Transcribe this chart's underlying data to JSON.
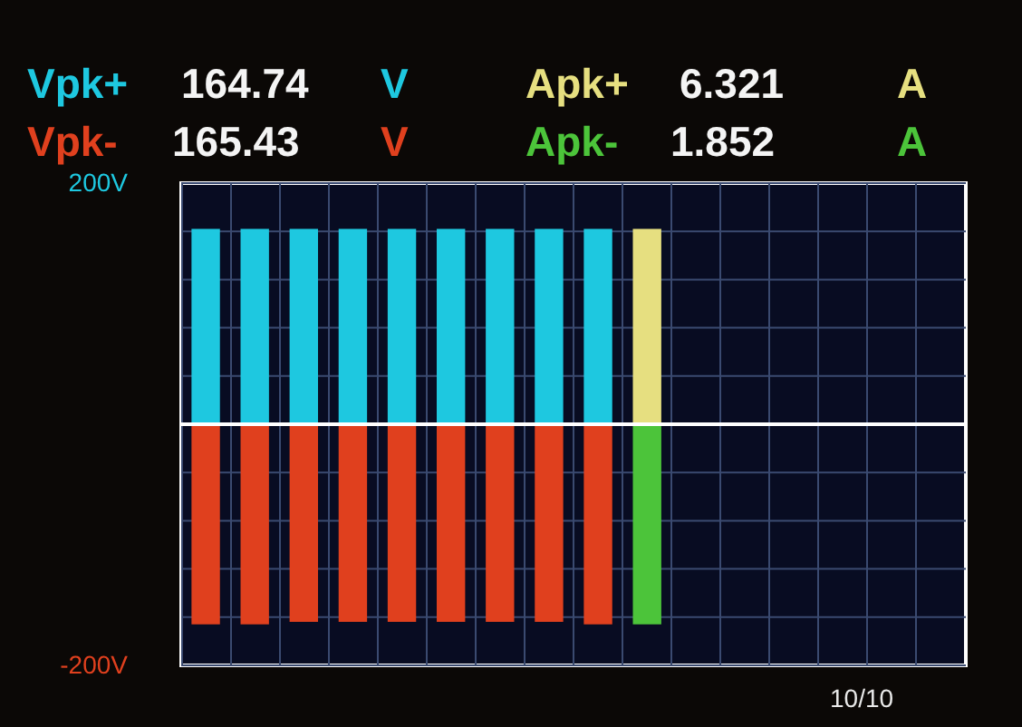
{
  "chart_data": {
    "type": "bar",
    "categories": [
      null,
      null,
      null,
      null,
      null,
      null,
      null,
      null,
      null,
      null,
      null,
      null,
      null,
      null,
      null,
      null
    ],
    "series": [
      {
        "name": "Vpk+",
        "color": "#1ec8e0",
        "values": [
          162,
          162,
          162,
          162,
          162,
          162,
          162,
          162,
          162,
          null,
          null,
          null,
          null,
          null,
          null,
          null
        ]
      },
      {
        "name": "Vpk-",
        "color": "#e0401e",
        "values": [
          -166,
          -166,
          -164,
          -164,
          -164,
          -164,
          -164,
          -164,
          -166,
          null,
          null,
          null,
          null,
          null,
          null,
          null
        ]
      },
      {
        "name": "Apk+",
        "color": "#e6df80",
        "values": [
          null,
          null,
          null,
          null,
          null,
          null,
          null,
          null,
          null,
          162,
          null,
          null,
          null,
          null,
          null,
          null
        ]
      },
      {
        "name": "Apk-",
        "color": "#4cc43a",
        "values": [
          null,
          null,
          null,
          null,
          null,
          null,
          null,
          null,
          null,
          -166,
          null,
          null,
          null,
          null,
          null,
          null
        ]
      }
    ],
    "ylim": [
      -200,
      200
    ],
    "yticks": [
      {
        "value": -200,
        "label": "-200V"
      },
      {
        "value": -160,
        "label": null
      },
      {
        "value": -120,
        "label": null
      },
      {
        "value": -80,
        "label": null
      },
      {
        "value": -40,
        "label": null
      },
      {
        "value": 0,
        "label": null
      },
      {
        "value": 40,
        "label": null
      },
      {
        "value": 80,
        "label": null
      },
      {
        "value": 120,
        "label": null
      },
      {
        "value": 160,
        "label": null
      },
      {
        "value": 200,
        "label": "200V"
      }
    ],
    "grid": true,
    "tick_labels": "y",
    "stacked": true,
    "ref_lines": [
      {
        "axis": "y",
        "value": 0,
        "color": "#ffffff"
      }
    ],
    "annotations": [
      "164.74",
      "V",
      "165.43",
      "V",
      "6.321",
      "A",
      "1.852",
      "A",
      "10/10"
    ]
  }
}
